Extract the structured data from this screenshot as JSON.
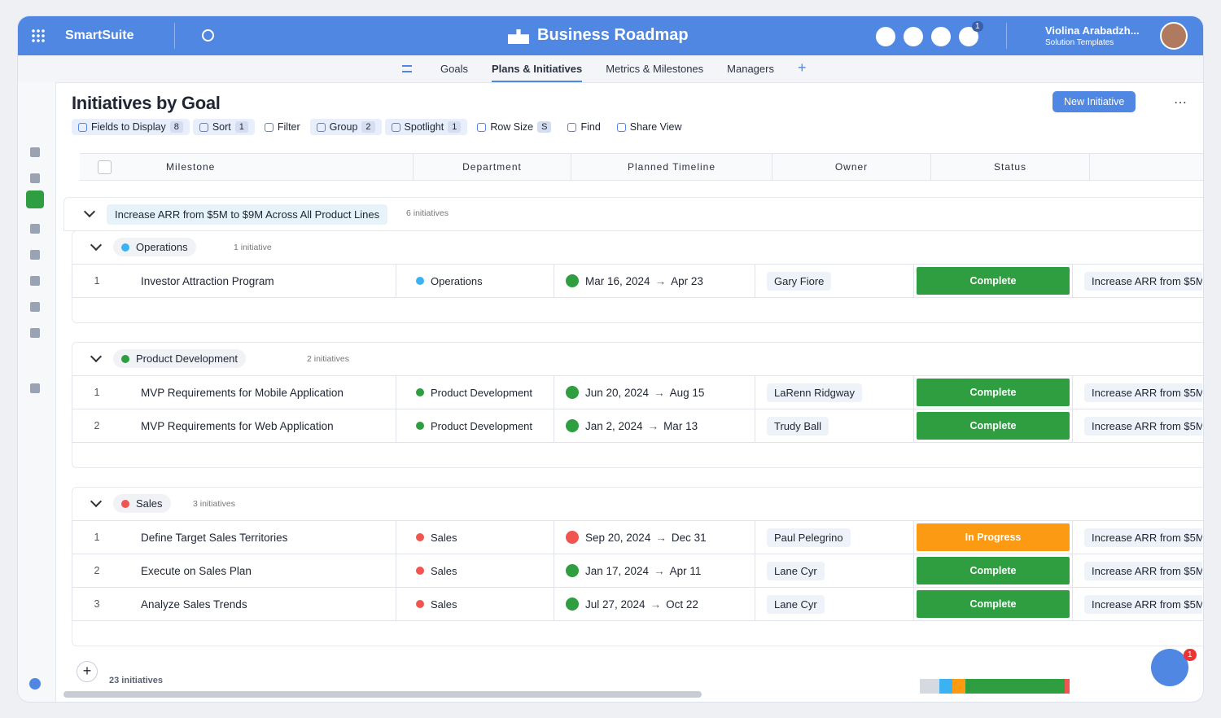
{
  "header": {
    "app_name": "SmartSuite",
    "title": "Business Roadmap",
    "notification_count": 1,
    "user_name": "Violina Arabadzh...",
    "user_role": "Solution Templates"
  },
  "nav_tabs": [
    "Goals",
    "Plans & Initiatives",
    "Metrics & Milestones",
    "Managers"
  ],
  "view": {
    "title": "Initiatives by Goal",
    "new_button": "New Initiative"
  },
  "toolbar": [
    {
      "label": "Fields to Display",
      "badge": 8
    },
    {
      "label": "Sort",
      "badge": 1
    },
    {
      "label": "Filter"
    },
    {
      "label": "Group",
      "badge": 2
    },
    {
      "label": "Spotlight",
      "badge": 1
    },
    {
      "label": "Row Size",
      "badge": "S"
    },
    {
      "label": "Find"
    },
    {
      "label": "Share View"
    }
  ],
  "columns": [
    "Milestone",
    "Department",
    "Planned Timeline",
    "Owner",
    "Status"
  ],
  "goal": {
    "label": "Increase ARR from $5M to $9M Across All Product Lines",
    "count": "6 initiatives"
  },
  "groups": [
    {
      "name": "Operations",
      "color": "#3bb3f2",
      "count": "1 initiative",
      "rows": [
        {
          "number": 1,
          "milestone": "Investor Attraction Program",
          "department": "Operations",
          "start": "Mar 16, 2024",
          "end": "Apr 23",
          "timeline_color": "#2e9e41",
          "owner": "Gary Fiore",
          "status": "Complete",
          "status_color": "#2e9e41"
        }
      ]
    },
    {
      "name": "Product Development",
      "color": "#2e9e41",
      "count": "2 initiatives",
      "rows": [
        {
          "number": 1,
          "milestone": "MVP Requirements for Mobile Application",
          "department": "Product Development",
          "start": "Jun 20, 2024",
          "end": "Aug 15",
          "timeline_color": "#2e9e41",
          "owner": "LaRenn Ridgway",
          "status": "Complete",
          "status_color": "#2e9e41"
        },
        {
          "number": 2,
          "milestone": "MVP Requirements for Web Application",
          "department": "Product Development",
          "start": "Jan 2, 2024",
          "end": "Mar 13",
          "timeline_color": "#2e9e41",
          "owner": "Trudy Ball",
          "status": "Complete",
          "status_color": "#2e9e41"
        }
      ]
    },
    {
      "name": "Sales",
      "color": "#f0564f",
      "count": "3 initiatives",
      "rows": [
        {
          "number": 1,
          "milestone": "Define Target Sales Territories",
          "department": "Sales",
          "start": "Sep 20, 2024",
          "end": "Dec 31",
          "timeline_color": "#f0564f",
          "owner": "Paul Pelegrino",
          "status": "In Progress",
          "status_color": "#fd9a14"
        },
        {
          "number": 2,
          "milestone": "Execute on Sales Plan",
          "department": "Sales",
          "start": "Jan 17, 2024",
          "end": "Apr 11",
          "timeline_color": "#2e9e41",
          "owner": "Lane Cyr",
          "status": "Complete",
          "status_color": "#2e9e41"
        },
        {
          "number": 3,
          "milestone": "Analyze Sales Trends",
          "department": "Sales",
          "start": "Jul 27, 2024",
          "end": "Oct 22",
          "timeline_color": "#2e9e41",
          "owner": "Lane Cyr",
          "status": "Complete",
          "status_color": "#2e9e41"
        }
      ]
    }
  ],
  "footer": {
    "total": "23 initiatives"
  },
  "chat_badge": 1
}
